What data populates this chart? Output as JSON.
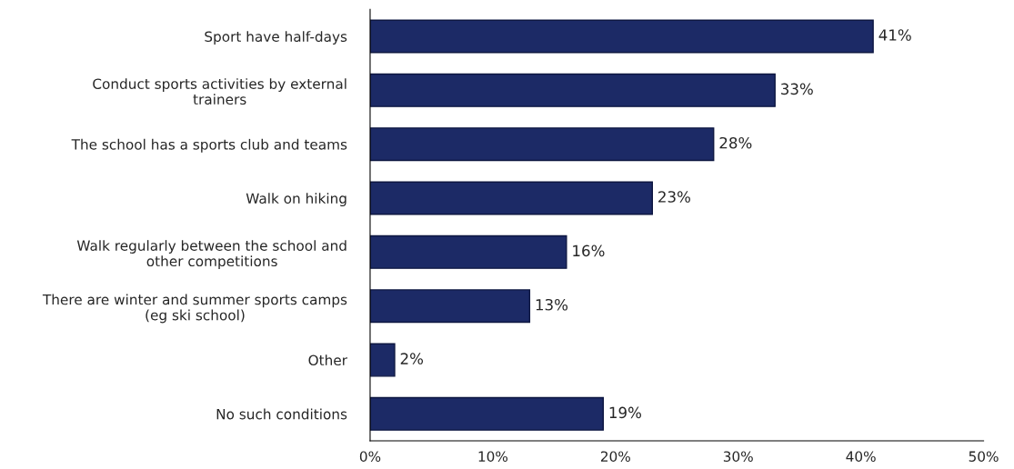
{
  "chart_data": {
    "type": "bar",
    "orientation": "horizontal",
    "categories": [
      "Sport have half-days",
      "Conduct sports activities by external\ntrainers",
      "The school has a sports club and teams",
      "Walk on hiking",
      "Walk regularly between the school and\nother competitions",
      "There are winter and summer sports camps\n(eg ski school)",
      "Other",
      "No such conditions"
    ],
    "values": [
      41,
      33,
      28,
      23,
      16,
      13,
      2,
      19
    ],
    "value_labels": [
      "41%",
      "33%",
      "28%",
      "23%",
      "16%",
      "13%",
      "2%",
      "19%"
    ],
    "color": "#1c2a66",
    "xlim": [
      0,
      50
    ],
    "xticks": [
      {
        "value": 0,
        "label": "0%"
      },
      {
        "value": 10,
        "label": "10%"
      },
      {
        "value": 20,
        "label": "20%"
      },
      {
        "value": 30,
        "label": "30%"
      },
      {
        "value": 40,
        "label": "40%"
      },
      {
        "value": 50,
        "label": "50%"
      }
    ],
    "grid": false,
    "legend": false
  }
}
